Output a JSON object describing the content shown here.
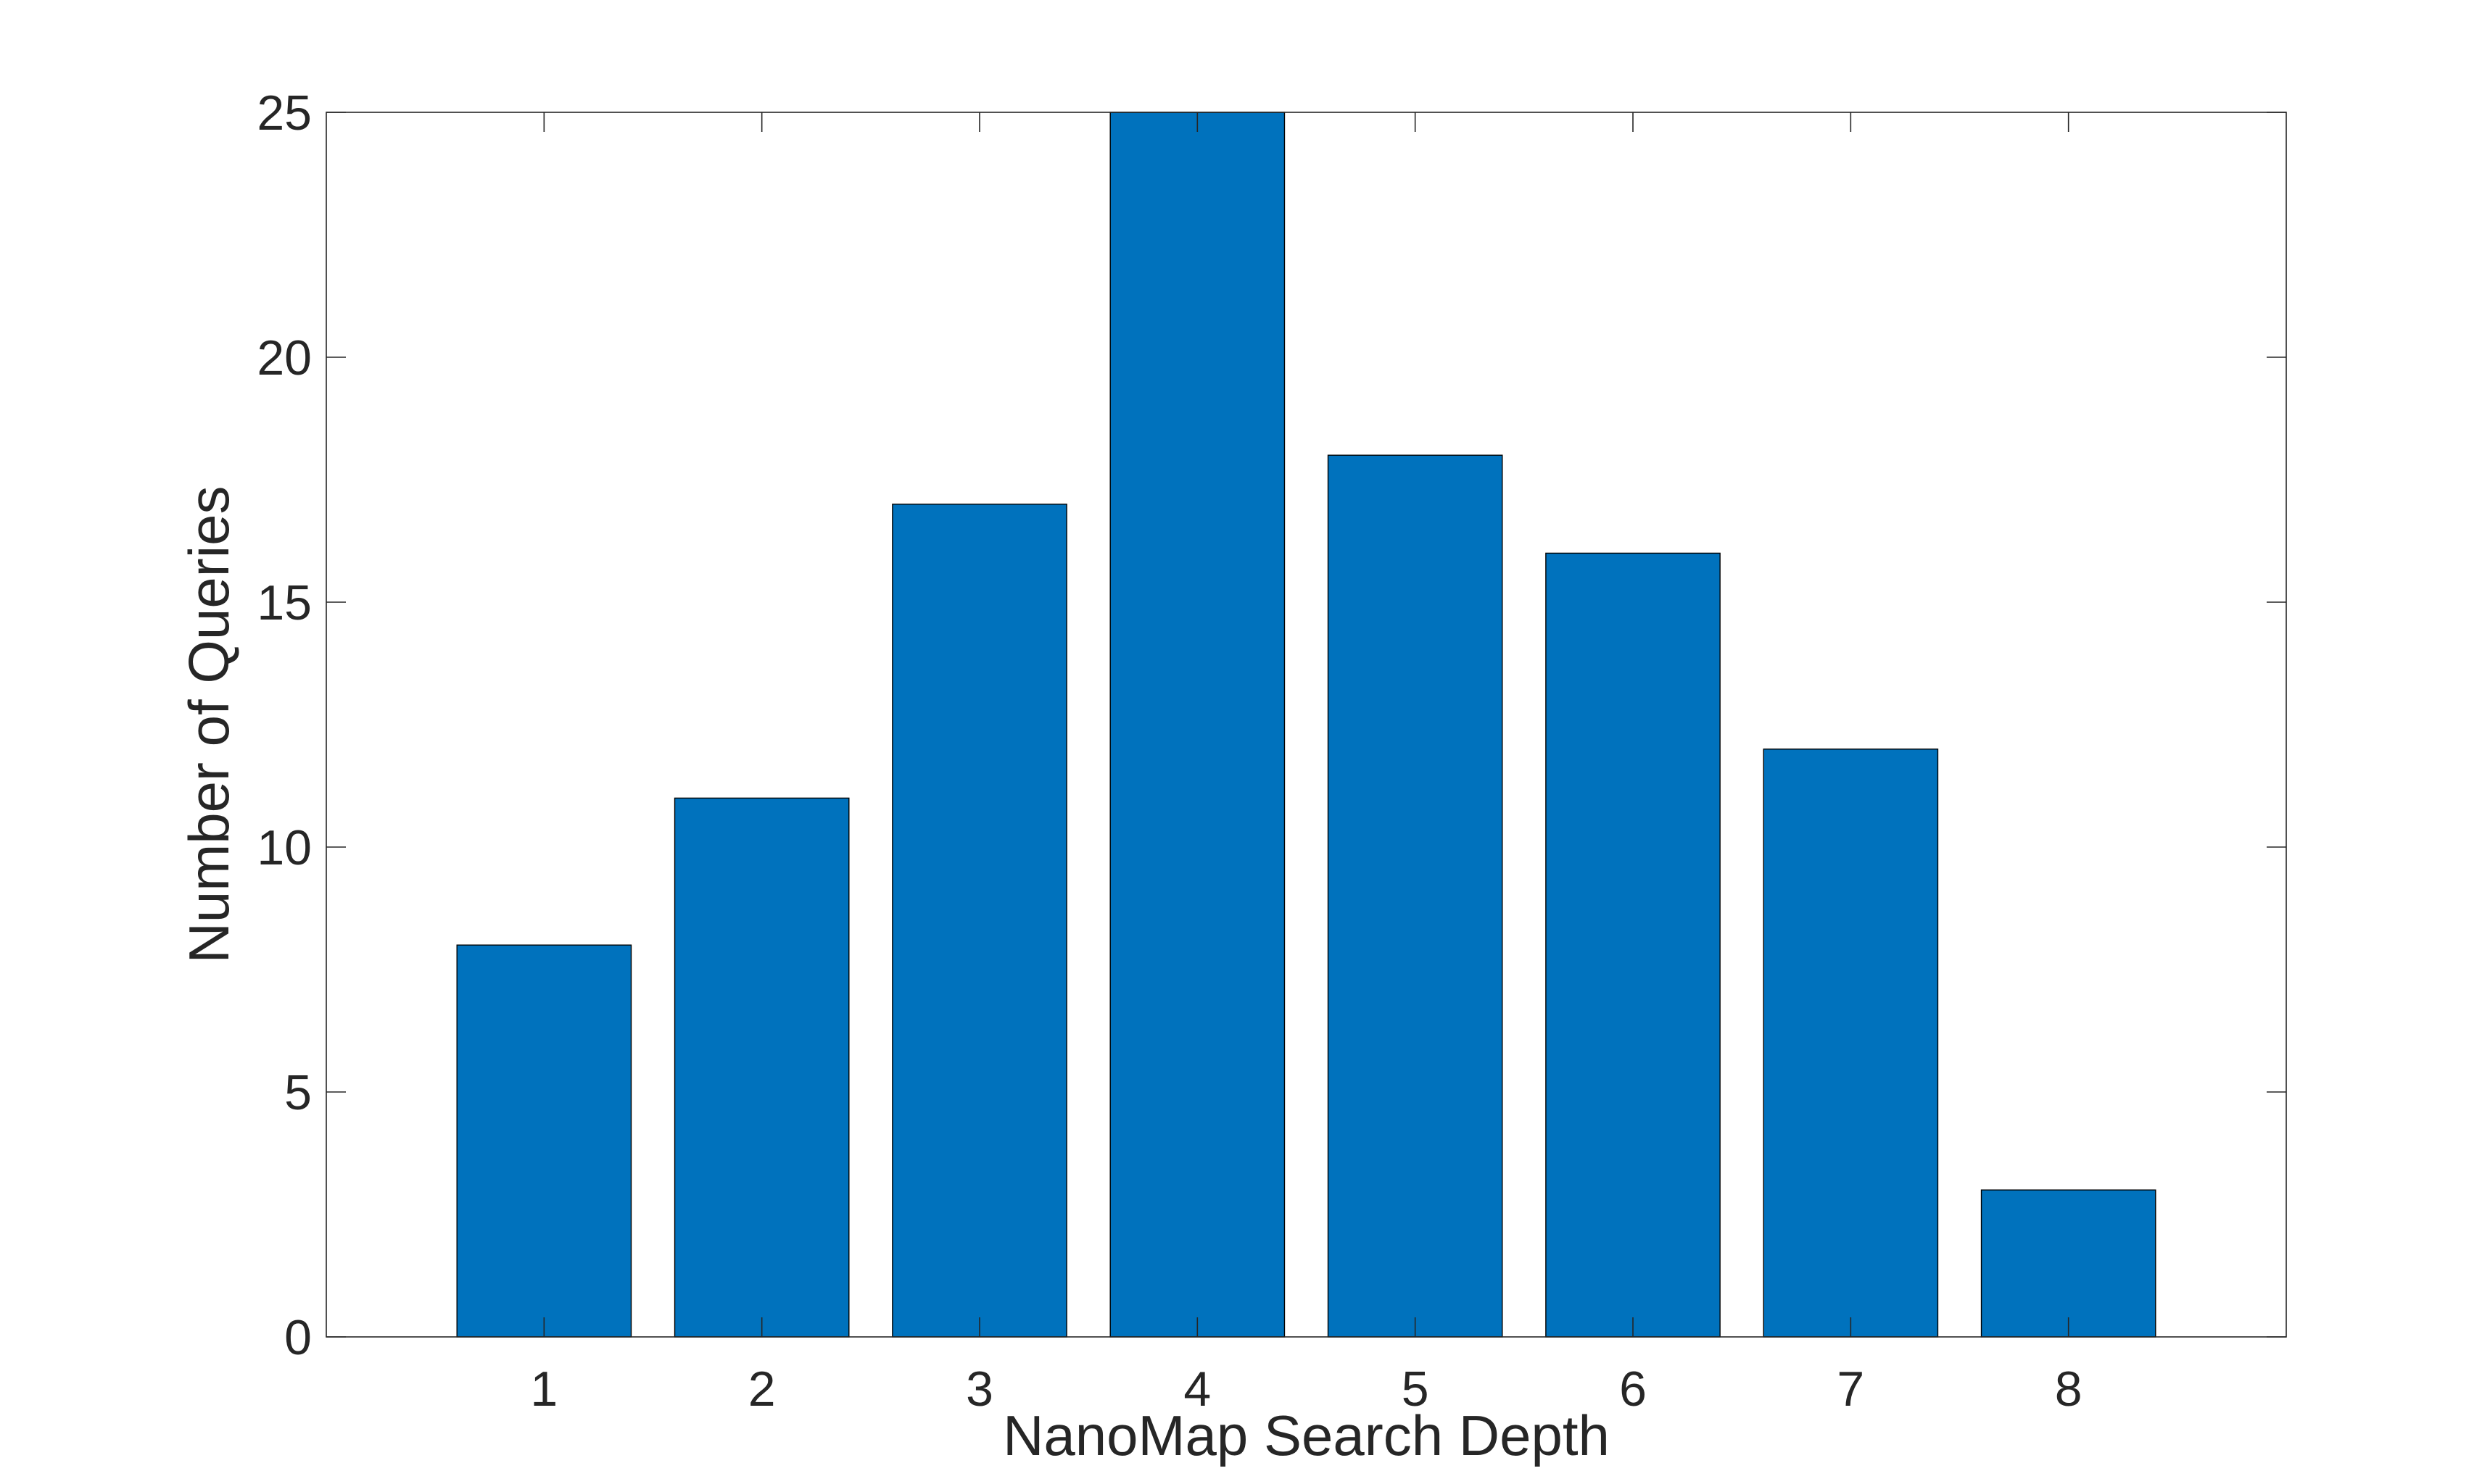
{
  "chart_data": {
    "type": "bar",
    "title": "",
    "xlabel": "NanoMap Search Depth",
    "ylabel": "Number of Queries",
    "categories": [
      "1",
      "2",
      "3",
      "4",
      "5",
      "6",
      "7",
      "8"
    ],
    "values": [
      8,
      11,
      17,
      25,
      18,
      16,
      12,
      3
    ],
    "xlim": [
      0,
      9
    ],
    "ylim": [
      0,
      25
    ],
    "yticks": [
      0,
      5,
      10,
      15,
      20,
      25
    ],
    "grid": false,
    "legend": "none",
    "bar_color": "#0072BD",
    "axis_color": "#262626"
  }
}
